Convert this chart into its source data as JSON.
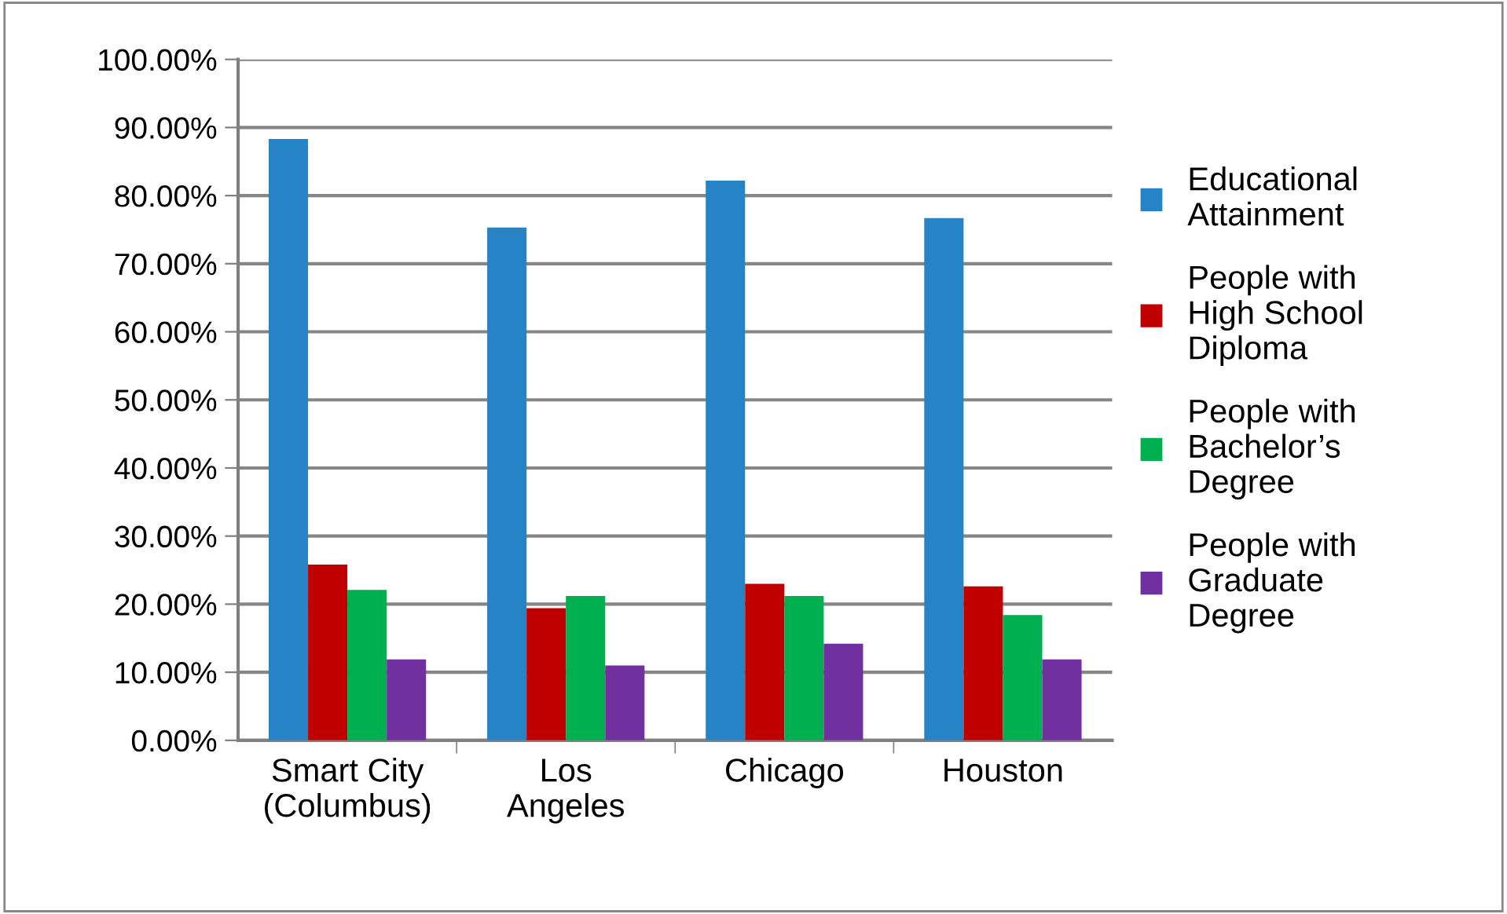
{
  "chart_data": {
    "type": "bar",
    "categories": [
      "Smart City\n(Columbus)",
      "Los\nAngeles",
      "Chicago",
      "Houston"
    ],
    "series": [
      {
        "name": "Educational\nAttainment",
        "color": "#2683c6",
        "values": [
          88.3,
          75.3,
          82.2,
          76.7
        ]
      },
      {
        "name": "People with\nHigh School\nDiploma",
        "color": "#c00000",
        "values": [
          25.8,
          19.4,
          23.0,
          22.6
        ]
      },
      {
        "name": "People with\nBachelor’s\nDegree",
        "color": "#00b050",
        "values": [
          22.1,
          21.2,
          21.2,
          18.4
        ]
      },
      {
        "name": "People with\nGraduate\nDegree",
        "color": "#7030a0",
        "values": [
          11.9,
          11.0,
          14.2,
          11.9
        ]
      }
    ],
    "ylim": [
      0,
      100
    ],
    "yticks": [
      {
        "value": 0,
        "label": "0.00%"
      },
      {
        "value": 10,
        "label": "10.00%"
      },
      {
        "value": 20,
        "label": "20.00%"
      },
      {
        "value": 30,
        "label": "30.00%"
      },
      {
        "value": 40,
        "label": "40.00%"
      },
      {
        "value": 50,
        "label": "50.00%"
      },
      {
        "value": 60,
        "label": "60.00%"
      },
      {
        "value": 70,
        "label": "70.00%"
      },
      {
        "value": 80,
        "label": "80.00%"
      },
      {
        "value": 90,
        "label": "90.00%"
      },
      {
        "value": 100,
        "label": "100.00%"
      }
    ],
    "grid": "y",
    "legend": "right"
  }
}
